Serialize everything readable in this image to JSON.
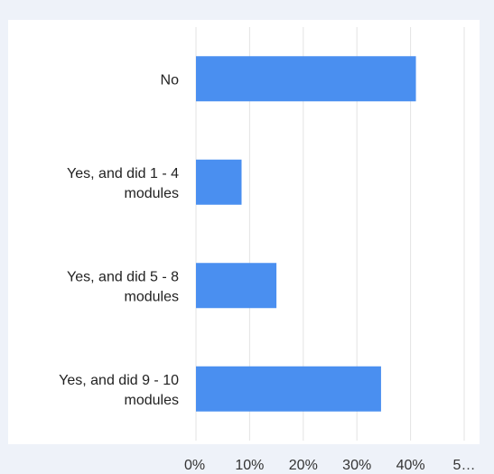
{
  "chart_data": {
    "type": "bar",
    "orientation": "horizontal",
    "categories": [
      [
        "No"
      ],
      [
        "Yes, and did 1 - 4",
        "modules"
      ],
      [
        "Yes, and did 5 - 8",
        "modules"
      ],
      [
        "Yes, and did 9 - 10",
        "modules"
      ]
    ],
    "values": [
      41,
      8.5,
      15,
      34.5
    ],
    "x_ticks": [
      "0%",
      "10%",
      "20%",
      "30%",
      "40%",
      "5…"
    ],
    "x_tick_values": [
      0,
      10,
      20,
      30,
      40,
      50
    ],
    "xlim": [
      0,
      50
    ],
    "grid": true,
    "bar_color": "#4a8ff0",
    "grid_color": "#e3e3e3",
    "title": "",
    "xlabel": "",
    "ylabel": ""
  }
}
